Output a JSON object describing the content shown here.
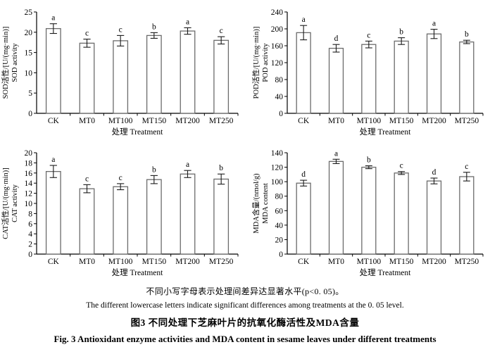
{
  "figure": {
    "note_zh": "不同小写字母表示处理间差异达显著水平(p<0. 05)。",
    "note_en": "The different lowercase letters indicate significant differences among treatments at the 0. 05 level.",
    "title_zh": "图3  不同处理下芝麻叶片的抗氧化酶活性及MDA含量",
    "title_en": "Fig. 3  Antioxidant enzyme activities and MDA content in sesame leaves under different treatments"
  },
  "colors": {
    "bar_fill": "#ffffff",
    "bar_stroke": "#6b6b6b",
    "axis": "#000000",
    "error_bar": "#1a1a1a",
    "text": "#000000",
    "background": "#ffffff"
  },
  "chart_data": [
    {
      "id": "sod",
      "type": "bar",
      "title": "",
      "categories": [
        "CK",
        "MT0",
        "MT100",
        "MT150",
        "MT200",
        "MT250"
      ],
      "values": [
        20.9,
        17.3,
        17.9,
        19.2,
        20.3,
        18.0
      ],
      "errors": [
        1.2,
        1.0,
        1.3,
        0.7,
        0.8,
        0.9
      ],
      "letters": [
        "a",
        "c",
        "c",
        "b",
        "a",
        "c"
      ],
      "ylabel_zh": "SOD活性/[U/(mg·min)]",
      "ylabel_en": "SOD activity",
      "xlabel": "处理 Treatment",
      "ylim": [
        0,
        25
      ],
      "ytick_step": 5,
      "grid": false,
      "legend": "none"
    },
    {
      "id": "pod",
      "type": "bar",
      "title": "",
      "categories": [
        "CK",
        "MT0",
        "MT100",
        "MT150",
        "MT200",
        "MT250"
      ],
      "values": [
        191,
        154,
        163,
        171,
        188,
        169
      ],
      "errors": [
        17,
        9,
        8,
        8,
        11,
        4
      ],
      "letters": [
        "a",
        "d",
        "c",
        "b",
        "a",
        "b"
      ],
      "ylabel_zh": "POD活性/[U/(mg·min)]",
      "ylabel_en": "POD activity",
      "xlabel": "处理 Treatment",
      "ylim": [
        0,
        240
      ],
      "ytick_step": 40,
      "grid": false,
      "legend": "none"
    },
    {
      "id": "cat",
      "type": "bar",
      "title": "",
      "categories": [
        "CK",
        "MT0",
        "MT100",
        "MT150",
        "MT200",
        "MT250"
      ],
      "values": [
        16.3,
        12.9,
        13.3,
        14.7,
        15.8,
        14.8
      ],
      "errors": [
        1.2,
        0.8,
        0.6,
        0.8,
        0.7,
        1.0
      ],
      "letters": [
        "a",
        "c",
        "c",
        "b",
        "a",
        "b"
      ],
      "ylabel_zh": "CAT活性/[U/(mg·min)]",
      "ylabel_en": "CAT activity",
      "xlabel": "处理 Treatment",
      "ylim": [
        0,
        20
      ],
      "ytick_step": 2,
      "grid": false,
      "legend": "none"
    },
    {
      "id": "mda",
      "type": "bar",
      "title": "",
      "categories": [
        "CK",
        "MT0",
        "MT100",
        "MT150",
        "MT200",
        "MT250"
      ],
      "values": [
        98,
        128,
        120,
        112,
        101,
        107
      ],
      "errors": [
        4,
        3,
        2,
        2,
        4,
        6
      ],
      "letters": [
        "d",
        "a",
        "b",
        "c",
        "d",
        "c"
      ],
      "ylabel_zh": "MDA含量/(nmol/g)",
      "ylabel_en": "MDA content",
      "xlabel": "处理 Treatment",
      "ylim": [
        0,
        140
      ],
      "ytick_step": 20,
      "grid": false,
      "legend": "none"
    }
  ]
}
